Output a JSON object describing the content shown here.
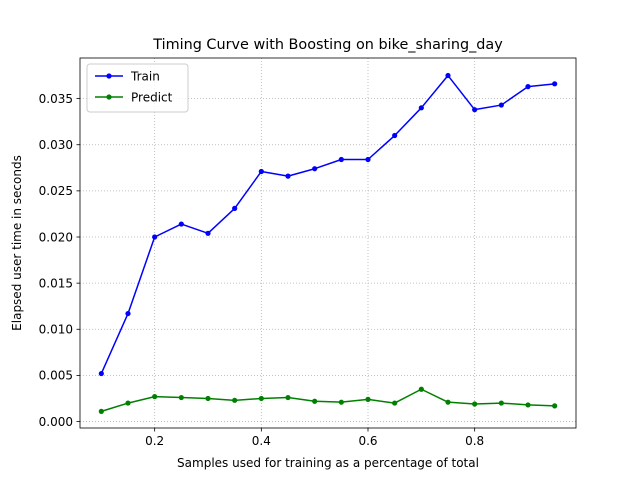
{
  "chart_data": {
    "type": "line",
    "title": "Timing Curve with Boosting on bike_sharing_day",
    "xlabel": "Samples used for training as a percentage of total",
    "ylabel": "Elapsed user time in seconds",
    "xlim": [
      0.06,
      0.99
    ],
    "ylim": [
      -0.0007,
      0.0394
    ],
    "xticks": [
      0.2,
      0.4,
      0.6,
      0.8
    ],
    "xtick_labels": [
      "0.2",
      "0.4",
      "0.6",
      "0.8"
    ],
    "yticks": [
      0.0,
      0.005,
      0.01,
      0.015,
      0.02,
      0.025,
      0.03,
      0.035
    ],
    "ytick_labels": [
      "0.000",
      "0.005",
      "0.010",
      "0.015",
      "0.020",
      "0.025",
      "0.030",
      "0.035"
    ],
    "grid": true,
    "legend_position": "top-left",
    "x": [
      0.1,
      0.15,
      0.2,
      0.25,
      0.3,
      0.35,
      0.4,
      0.45,
      0.5,
      0.55,
      0.6,
      0.65,
      0.7,
      0.75,
      0.8,
      0.85,
      0.9,
      0.95
    ],
    "series": [
      {
        "name": "Train",
        "color": "#0000ff",
        "values": [
          0.0052,
          0.0117,
          0.02,
          0.0214,
          0.0204,
          0.0231,
          0.0271,
          0.0266,
          0.0274,
          0.0284,
          0.0284,
          0.031,
          0.034,
          0.0375,
          0.0338,
          0.0343,
          0.0363,
          0.0366
        ]
      },
      {
        "name": "Predict",
        "color": "#008000",
        "values": [
          0.0011,
          0.002,
          0.0027,
          0.0026,
          0.0025,
          0.0023,
          0.0025,
          0.0026,
          0.0022,
          0.0021,
          0.0024,
          0.002,
          0.0035,
          0.0021,
          0.0019,
          0.002,
          0.0018,
          0.0017
        ]
      }
    ]
  }
}
